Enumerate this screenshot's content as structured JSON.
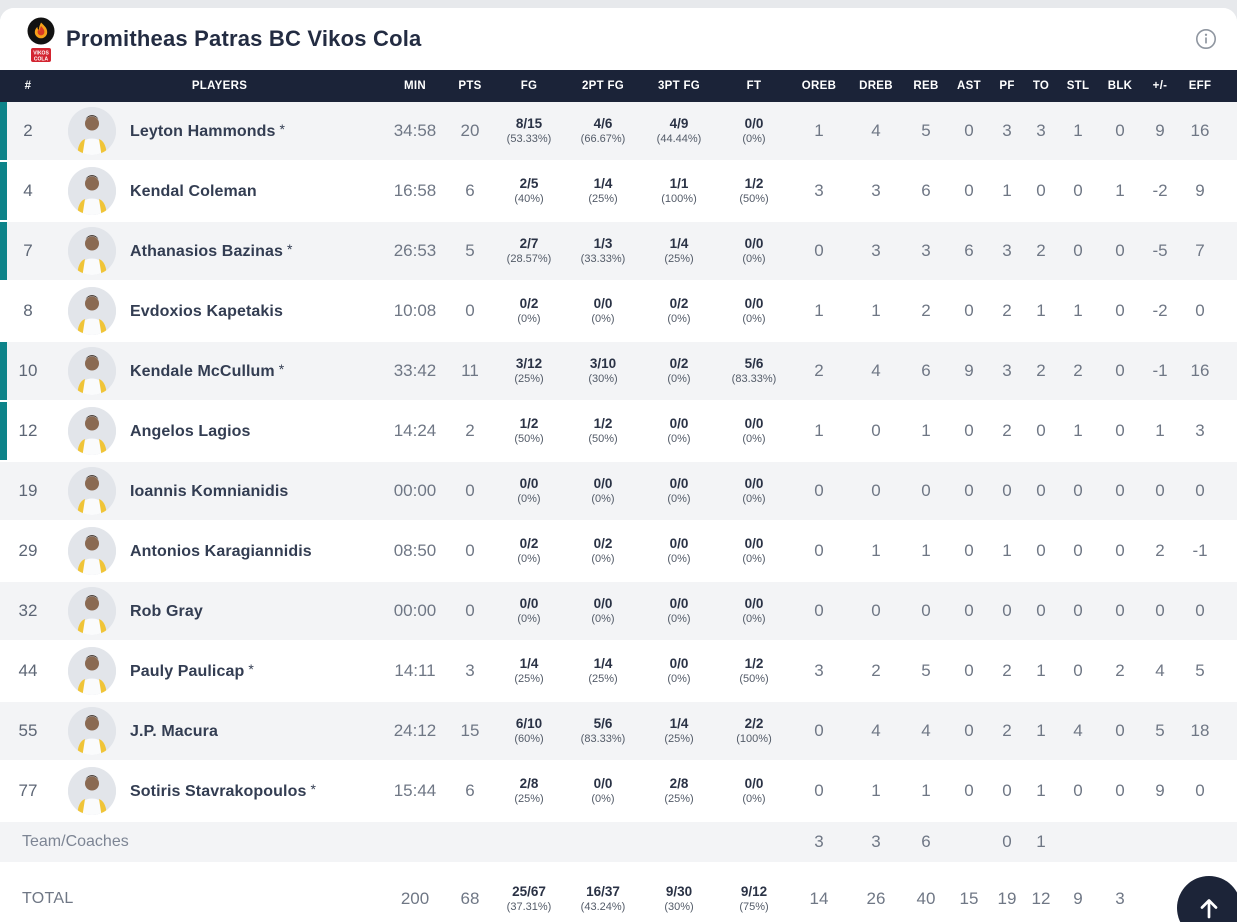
{
  "header": {
    "title": "Promitheas Patras BC Vikos Cola",
    "logo_line1": "VIKOS",
    "logo_line2": "COLA"
  },
  "colors": {
    "header_navy": "#1b2338",
    "on_court_teal": "#0d8389",
    "row_gray": "#f3f4f6",
    "logo_red": "#d32430",
    "logo_flame": "#f6a21a"
  },
  "table": {
    "starter_mark": "*",
    "columns": [
      "#",
      "PLAYERS",
      "MIN",
      "PTS",
      "FG",
      "2PT FG",
      "3PT FG",
      "FT",
      "OREB",
      "DREB",
      "REB",
      "AST",
      "PF",
      "TO",
      "STL",
      "BLK",
      "+/-",
      "EFF"
    ],
    "players": [
      {
        "number": "2",
        "name": "Leyton Hammonds",
        "starter": true,
        "on_court": true,
        "min": "34:58",
        "pts": "20",
        "fg": "8/15",
        "fg_pct": "(53.33%)",
        "p2": "4/6",
        "p2_pct": "(66.67%)",
        "p3": "4/9",
        "p3_pct": "(44.44%)",
        "ft": "0/0",
        "ft_pct": "(0%)",
        "oreb": "1",
        "dreb": "4",
        "reb": "5",
        "ast": "0",
        "pf": "3",
        "to": "3",
        "stl": "1",
        "blk": "0",
        "pm": "9",
        "eff": "16"
      },
      {
        "number": "4",
        "name": "Kendal Coleman",
        "starter": false,
        "on_court": true,
        "min": "16:58",
        "pts": "6",
        "fg": "2/5",
        "fg_pct": "(40%)",
        "p2": "1/4",
        "p2_pct": "(25%)",
        "p3": "1/1",
        "p3_pct": "(100%)",
        "ft": "1/2",
        "ft_pct": "(50%)",
        "oreb": "3",
        "dreb": "3",
        "reb": "6",
        "ast": "0",
        "pf": "1",
        "to": "0",
        "stl": "0",
        "blk": "1",
        "pm": "-2",
        "eff": "9"
      },
      {
        "number": "7",
        "name": "Athanasios Bazinas",
        "starter": true,
        "on_court": true,
        "min": "26:53",
        "pts": "5",
        "fg": "2/7",
        "fg_pct": "(28.57%)",
        "p2": "1/3",
        "p2_pct": "(33.33%)",
        "p3": "1/4",
        "p3_pct": "(25%)",
        "ft": "0/0",
        "ft_pct": "(0%)",
        "oreb": "0",
        "dreb": "3",
        "reb": "3",
        "ast": "6",
        "pf": "3",
        "to": "2",
        "stl": "0",
        "blk": "0",
        "pm": "-5",
        "eff": "7"
      },
      {
        "number": "8",
        "name": "Evdoxios Kapetakis",
        "starter": false,
        "on_court": false,
        "min": "10:08",
        "pts": "0",
        "fg": "0/2",
        "fg_pct": "(0%)",
        "p2": "0/0",
        "p2_pct": "(0%)",
        "p3": "0/2",
        "p3_pct": "(0%)",
        "ft": "0/0",
        "ft_pct": "(0%)",
        "oreb": "1",
        "dreb": "1",
        "reb": "2",
        "ast": "0",
        "pf": "2",
        "to": "1",
        "stl": "1",
        "blk": "0",
        "pm": "-2",
        "eff": "0"
      },
      {
        "number": "10",
        "name": "Kendale McCullum",
        "starter": true,
        "on_court": true,
        "min": "33:42",
        "pts": "11",
        "fg": "3/12",
        "fg_pct": "(25%)",
        "p2": "3/10",
        "p2_pct": "(30%)",
        "p3": "0/2",
        "p3_pct": "(0%)",
        "ft": "5/6",
        "ft_pct": "(83.33%)",
        "oreb": "2",
        "dreb": "4",
        "reb": "6",
        "ast": "9",
        "pf": "3",
        "to": "2",
        "stl": "2",
        "blk": "0",
        "pm": "-1",
        "eff": "16"
      },
      {
        "number": "12",
        "name": "Angelos Lagios",
        "starter": false,
        "on_court": true,
        "min": "14:24",
        "pts": "2",
        "fg": "1/2",
        "fg_pct": "(50%)",
        "p2": "1/2",
        "p2_pct": "(50%)",
        "p3": "0/0",
        "p3_pct": "(0%)",
        "ft": "0/0",
        "ft_pct": "(0%)",
        "oreb": "1",
        "dreb": "0",
        "reb": "1",
        "ast": "0",
        "pf": "2",
        "to": "0",
        "stl": "1",
        "blk": "0",
        "pm": "1",
        "eff": "3"
      },
      {
        "number": "19",
        "name": "Ioannis Komnianidis",
        "starter": false,
        "on_court": false,
        "min": "00:00",
        "pts": "0",
        "fg": "0/0",
        "fg_pct": "(0%)",
        "p2": "0/0",
        "p2_pct": "(0%)",
        "p3": "0/0",
        "p3_pct": "(0%)",
        "ft": "0/0",
        "ft_pct": "(0%)",
        "oreb": "0",
        "dreb": "0",
        "reb": "0",
        "ast": "0",
        "pf": "0",
        "to": "0",
        "stl": "0",
        "blk": "0",
        "pm": "0",
        "eff": "0"
      },
      {
        "number": "29",
        "name": "Antonios Karagiannidis",
        "starter": false,
        "on_court": false,
        "min": "08:50",
        "pts": "0",
        "fg": "0/2",
        "fg_pct": "(0%)",
        "p2": "0/2",
        "p2_pct": "(0%)",
        "p3": "0/0",
        "p3_pct": "(0%)",
        "ft": "0/0",
        "ft_pct": "(0%)",
        "oreb": "0",
        "dreb": "1",
        "reb": "1",
        "ast": "0",
        "pf": "1",
        "to": "0",
        "stl": "0",
        "blk": "0",
        "pm": "2",
        "eff": "-1"
      },
      {
        "number": "32",
        "name": "Rob Gray",
        "starter": false,
        "on_court": false,
        "min": "00:00",
        "pts": "0",
        "fg": "0/0",
        "fg_pct": "(0%)",
        "p2": "0/0",
        "p2_pct": "(0%)",
        "p3": "0/0",
        "p3_pct": "(0%)",
        "ft": "0/0",
        "ft_pct": "(0%)",
        "oreb": "0",
        "dreb": "0",
        "reb": "0",
        "ast": "0",
        "pf": "0",
        "to": "0",
        "stl": "0",
        "blk": "0",
        "pm": "0",
        "eff": "0"
      },
      {
        "number": "44",
        "name": "Pauly Paulicap",
        "starter": true,
        "on_court": false,
        "min": "14:11",
        "pts": "3",
        "fg": "1/4",
        "fg_pct": "(25%)",
        "p2": "1/4",
        "p2_pct": "(25%)",
        "p3": "0/0",
        "p3_pct": "(0%)",
        "ft": "1/2",
        "ft_pct": "(50%)",
        "oreb": "3",
        "dreb": "2",
        "reb": "5",
        "ast": "0",
        "pf": "2",
        "to": "1",
        "stl": "0",
        "blk": "2",
        "pm": "4",
        "eff": "5"
      },
      {
        "number": "55",
        "name": "J.P. Macura",
        "starter": false,
        "on_court": false,
        "min": "24:12",
        "pts": "15",
        "fg": "6/10",
        "fg_pct": "(60%)",
        "p2": "5/6",
        "p2_pct": "(83.33%)",
        "p3": "1/4",
        "p3_pct": "(25%)",
        "ft": "2/2",
        "ft_pct": "(100%)",
        "oreb": "0",
        "dreb": "4",
        "reb": "4",
        "ast": "0",
        "pf": "2",
        "to": "1",
        "stl": "4",
        "blk": "0",
        "pm": "5",
        "eff": "18"
      },
      {
        "number": "77",
        "name": "Sotiris Stavrakopoulos",
        "starter": true,
        "on_court": false,
        "min": "15:44",
        "pts": "6",
        "fg": "2/8",
        "fg_pct": "(25%)",
        "p2": "0/0",
        "p2_pct": "(0%)",
        "p3": "2/8",
        "p3_pct": "(25%)",
        "ft": "0/0",
        "ft_pct": "(0%)",
        "oreb": "0",
        "dreb": "1",
        "reb": "1",
        "ast": "0",
        "pf": "0",
        "to": "1",
        "stl": "0",
        "blk": "0",
        "pm": "9",
        "eff": "0"
      }
    ],
    "team": {
      "label": "Team/Coaches",
      "oreb": "3",
      "dreb": "3",
      "reb": "6",
      "ast": "",
      "pf": "0",
      "to": "1"
    },
    "total": {
      "label": "TOTAL",
      "min": "200",
      "pts": "68",
      "fg": "25/67",
      "fg_pct": "(37.31%)",
      "p2": "16/37",
      "p2_pct": "(43.24%)",
      "p3": "9/30",
      "p3_pct": "(30%)",
      "ft": "9/12",
      "ft_pct": "(75%)",
      "oreb": "14",
      "dreb": "26",
      "reb": "40",
      "ast": "15",
      "pf": "19",
      "to": "12",
      "stl": "9",
      "blk": "3"
    }
  }
}
